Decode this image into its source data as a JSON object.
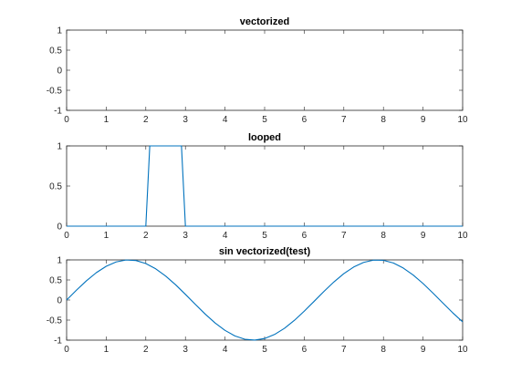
{
  "chart_data": [
    {
      "type": "line",
      "title": "vectorized",
      "xlabel": "",
      "ylabel": "",
      "xlim": [
        0,
        10
      ],
      "ylim": [
        -1,
        1
      ],
      "xticks": [
        0,
        1,
        2,
        3,
        4,
        5,
        6,
        7,
        8,
        9,
        10
      ],
      "yticks": [
        -1,
        -0.5,
        0,
        0.5,
        1
      ],
      "grid": false,
      "series": []
    },
    {
      "type": "line",
      "title": "looped",
      "xlabel": "",
      "ylabel": "",
      "xlim": [
        0,
        10
      ],
      "ylim": [
        0,
        1
      ],
      "xticks": [
        0,
        1,
        2,
        3,
        4,
        5,
        6,
        7,
        8,
        9,
        10
      ],
      "yticks": [
        0,
        0.5,
        1
      ],
      "grid": false,
      "series": [
        {
          "color": "#0072BD",
          "x": [
            0,
            2.0,
            2.1,
            2.9,
            3.0,
            10
          ],
          "y": [
            0,
            0,
            1,
            1,
            0,
            0
          ]
        }
      ]
    },
    {
      "type": "line",
      "title": "sin vectorized(test)",
      "xlabel": "",
      "ylabel": "",
      "xlim": [
        0,
        10
      ],
      "ylim": [
        -1,
        1
      ],
      "xticks": [
        0,
        1,
        2,
        3,
        4,
        5,
        6,
        7,
        8,
        9,
        10
      ],
      "yticks": [
        -1,
        -0.5,
        0,
        0.5,
        1
      ],
      "grid": false,
      "series": [
        {
          "color": "#0072BD",
          "x": [
            0,
            0.25,
            0.5,
            0.75,
            1,
            1.25,
            1.5,
            1.75,
            2,
            2.25,
            2.5,
            2.75,
            3,
            3.25,
            3.5,
            3.75,
            4,
            4.25,
            4.5,
            4.75,
            5,
            5.25,
            5.5,
            5.75,
            6,
            6.25,
            6.5,
            6.75,
            7,
            7.25,
            7.5,
            7.75,
            8,
            8.25,
            8.5,
            8.75,
            9,
            9.25,
            9.5,
            9.75,
            10
          ],
          "y": [
            0,
            0.247,
            0.479,
            0.682,
            0.841,
            0.949,
            0.997,
            0.984,
            0.909,
            0.778,
            0.598,
            0.382,
            0.141,
            -0.108,
            -0.351,
            -0.572,
            -0.757,
            -0.895,
            -0.978,
            -0.999,
            -0.959,
            -0.859,
            -0.706,
            -0.508,
            -0.279,
            -0.033,
            0.215,
            0.451,
            0.657,
            0.823,
            0.938,
            0.994,
            0.989,
            0.923,
            0.798,
            0.624,
            0.412,
            0.174,
            -0.075,
            -0.319,
            -0.544
          ]
        }
      ]
    }
  ]
}
